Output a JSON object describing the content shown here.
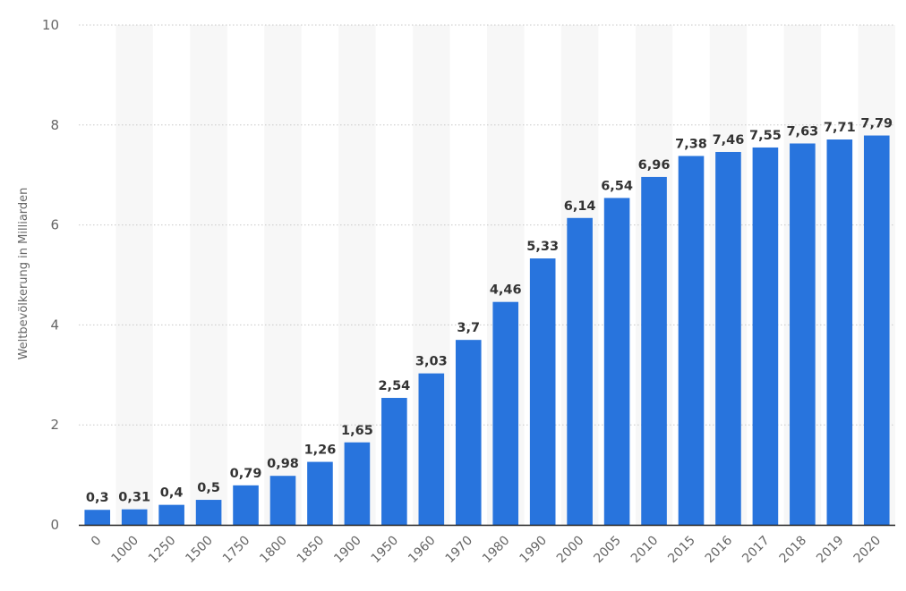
{
  "chart_data": {
    "type": "bar",
    "title": "",
    "xlabel": "",
    "ylabel": "Weltbevölkerung in Milliarden",
    "ylim": [
      0,
      10
    ],
    "yticks": [
      "0",
      "2",
      "4",
      "6",
      "8",
      "10"
    ],
    "grid": true,
    "legend": "none",
    "categories": [
      "0",
      "1000",
      "1250",
      "1500",
      "1750",
      "1800",
      "1850",
      "1900",
      "1950",
      "1960",
      "1970",
      "1980",
      "1990",
      "2000",
      "2005",
      "2010",
      "2015",
      "2016",
      "2017",
      "2018",
      "2019",
      "2020"
    ],
    "values": [
      0.3,
      0.31,
      0.4,
      0.5,
      0.79,
      0.98,
      1.26,
      1.65,
      2.54,
      3.03,
      3.7,
      4.46,
      5.33,
      6.14,
      6.54,
      6.96,
      7.38,
      7.46,
      7.55,
      7.63,
      7.71,
      7.79
    ],
    "value_labels": [
      "0,3",
      "0,31",
      "0,4",
      "0,5",
      "0,79",
      "0,98",
      "1,26",
      "1,65",
      "2,54",
      "3,03",
      "3,7",
      "4,46",
      "5,33",
      "6,14",
      "6,54",
      "6,96",
      "7,38",
      "7,46",
      "7,55",
      "7,63",
      "7,71",
      "7,79"
    ],
    "colors": {
      "bar": "#2874dd",
      "band": "#f7f7f7",
      "grid": "#c8c8c8",
      "axis": "#222222"
    }
  }
}
